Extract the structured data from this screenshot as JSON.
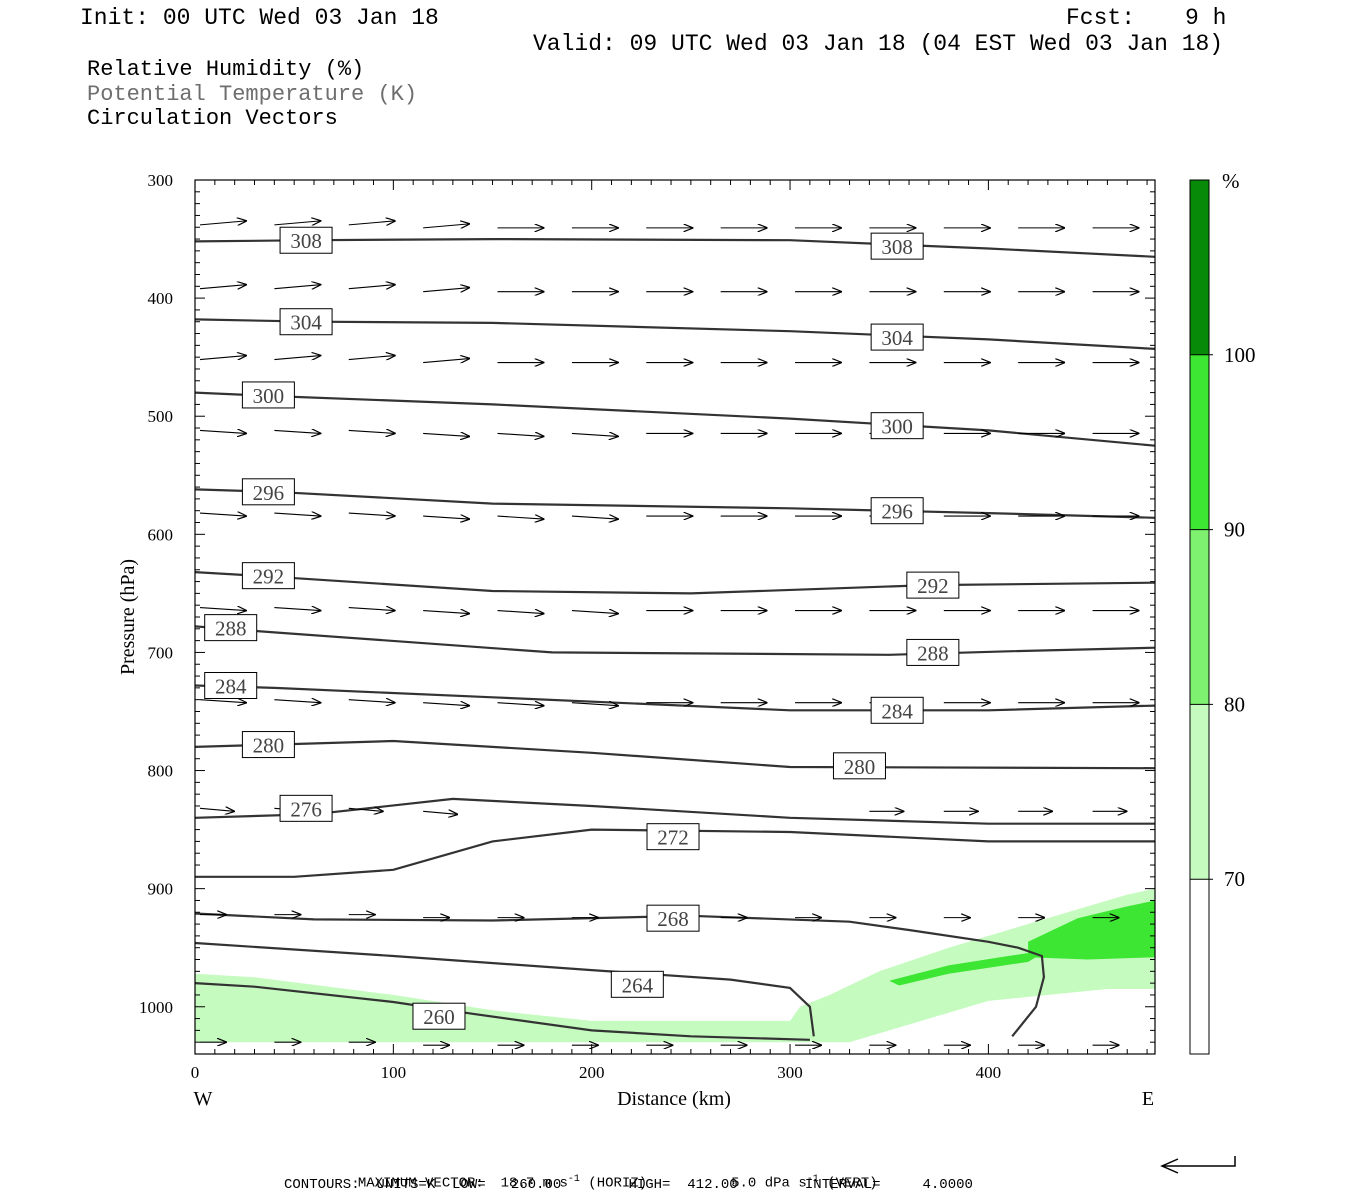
{
  "header": {
    "init": "Init: 00 UTC Wed 03 Jan 18",
    "fcst_label": "Fcst:",
    "fcst_value": "9 h",
    "valid": "Valid: 09 UTC Wed 03 Jan 18 (04 EST Wed 03 Jan 18)"
  },
  "legend": {
    "line1": "Relative Humidity (%)",
    "line2": "Potential Temperature (K)",
    "line3": "Circulation Vectors",
    "line2_color": "#6e6e6e"
  },
  "footer": {
    "max_vector_label": "MAXIMUM VECTOR:",
    "horiz_value": "18.7 m s",
    "horiz_unit_sup": "-1",
    "horiz_tag": "(HORIZ)",
    "vert_value": "5.0 dPa s",
    "vert_unit_sup": "-1",
    "vert_tag": "(VERT)",
    "contours": "CONTOURS:  UNITS=K  LOW=   260.00        HIGH=  412.00        INTERVAL=     4.0000"
  },
  "chart_data": {
    "type": "cross-section",
    "xlabel": "Distance (km)",
    "ylabel": "Pressure (hPa)",
    "x_ticks": [
      0,
      100,
      200,
      300,
      400
    ],
    "x_range": [
      0,
      484
    ],
    "y_ticks": [
      300,
      400,
      500,
      600,
      700,
      800,
      900,
      1000
    ],
    "y_range": [
      300,
      1040
    ],
    "x_end_labels": [
      "W",
      "E"
    ],
    "colorbar": {
      "unit": "%",
      "levels": [
        70,
        80,
        90,
        100
      ],
      "colors": [
        "#c6fbc0",
        "#7ef270",
        "#3de632",
        "#0fc80f",
        "#078a07"
      ]
    },
    "theta_contours": [
      {
        "label": "308",
        "points": [
          [
            0,
            352
          ],
          [
            60,
            351
          ],
          [
            150,
            350
          ],
          [
            300,
            351
          ],
          [
            400,
            358
          ],
          [
            484,
            365
          ]
        ],
        "labels_at": [
          [
            56,
            351
          ],
          [
            354,
            356
          ]
        ]
      },
      {
        "label": "304",
        "points": [
          [
            0,
            418
          ],
          [
            60,
            420
          ],
          [
            150,
            421
          ],
          [
            300,
            428
          ],
          [
            400,
            435
          ],
          [
            484,
            443
          ]
        ],
        "labels_at": [
          [
            56,
            420
          ],
          [
            354,
            433
          ]
        ]
      },
      {
        "label": "300",
        "points": [
          [
            0,
            480
          ],
          [
            40,
            483
          ],
          [
            150,
            490
          ],
          [
            300,
            502
          ],
          [
            400,
            512
          ],
          [
            484,
            525
          ]
        ],
        "labels_at": [
          [
            37,
            482
          ],
          [
            354,
            508
          ]
        ]
      },
      {
        "label": "296",
        "points": [
          [
            0,
            562
          ],
          [
            40,
            564
          ],
          [
            150,
            574
          ],
          [
            300,
            578
          ],
          [
            400,
            582
          ],
          [
            484,
            586
          ]
        ],
        "labels_at": [
          [
            37,
            564
          ],
          [
            354,
            580
          ]
        ]
      },
      {
        "label": "292",
        "points": [
          [
            0,
            632
          ],
          [
            40,
            636
          ],
          [
            150,
            648
          ],
          [
            250,
            650
          ],
          [
            370,
            643
          ],
          [
            484,
            641
          ]
        ],
        "labels_at": [
          [
            37,
            635
          ],
          [
            372,
            643
          ]
        ]
      },
      {
        "label": "288",
        "points": [
          [
            0,
            678
          ],
          [
            40,
            683
          ],
          [
            180,
            700
          ],
          [
            350,
            702
          ],
          [
            410,
            699
          ],
          [
            484,
            696
          ]
        ],
        "labels_at": [
          [
            18,
            679
          ],
          [
            372,
            700
          ]
        ]
      },
      {
        "label": "284",
        "points": [
          [
            0,
            728
          ],
          [
            40,
            730
          ],
          [
            150,
            738
          ],
          [
            300,
            749
          ],
          [
            400,
            749
          ],
          [
            484,
            745
          ]
        ],
        "labels_at": [
          [
            18,
            728
          ],
          [
            354,
            749
          ]
        ]
      },
      {
        "label": "280",
        "points": [
          [
            0,
            780
          ],
          [
            40,
            778
          ],
          [
            100,
            775
          ],
          [
            200,
            785
          ],
          [
            300,
            797
          ],
          [
            484,
            798
          ]
        ],
        "labels_at": [
          [
            37,
            778
          ],
          [
            335,
            796
          ]
        ]
      },
      {
        "label": "276",
        "points": [
          [
            0,
            840
          ],
          [
            60,
            837
          ],
          [
            130,
            824
          ],
          [
            200,
            830
          ],
          [
            300,
            840
          ],
          [
            400,
            845
          ],
          [
            484,
            845
          ]
        ],
        "labels_at": [
          [
            56,
            832
          ]
        ]
      },
      {
        "label": "272",
        "points": [
          [
            0,
            890
          ],
          [
            50,
            890
          ],
          [
            100,
            884
          ],
          [
            150,
            860
          ],
          [
            200,
            850
          ],
          [
            300,
            852
          ],
          [
            400,
            860
          ],
          [
            484,
            860
          ]
        ],
        "labels_at": [
          [
            241,
            856
          ]
        ]
      },
      {
        "label": "268",
        "points": [
          [
            0,
            921
          ],
          [
            60,
            926
          ],
          [
            150,
            927
          ],
          [
            250,
            923
          ],
          [
            330,
            928
          ],
          [
            360,
            935
          ],
          [
            400,
            945
          ],
          [
            415,
            950
          ],
          [
            427,
            957
          ],
          [
            428,
            975
          ],
          [
            424,
            1000
          ],
          [
            412,
            1025
          ]
        ],
        "labels_at": [
          [
            241,
            925
          ]
        ]
      },
      {
        "label": "264",
        "points": [
          [
            0,
            946
          ],
          [
            100,
            957
          ],
          [
            200,
            969
          ],
          [
            270,
            977
          ],
          [
            300,
            984
          ],
          [
            310,
            1000
          ],
          [
            312,
            1025
          ]
        ],
        "labels_at": [
          [
            223,
            981
          ]
        ]
      },
      {
        "label": "260",
        "points": [
          [
            0,
            980
          ],
          [
            30,
            983
          ],
          [
            100,
            996
          ],
          [
            140,
            1006
          ],
          [
            200,
            1020
          ],
          [
            250,
            1025
          ],
          [
            310,
            1028
          ]
        ],
        "labels_at": [
          [
            123,
            1008
          ]
        ]
      }
    ],
    "vectors_note": "circulation vectors mostly westerly (left to right)"
  }
}
